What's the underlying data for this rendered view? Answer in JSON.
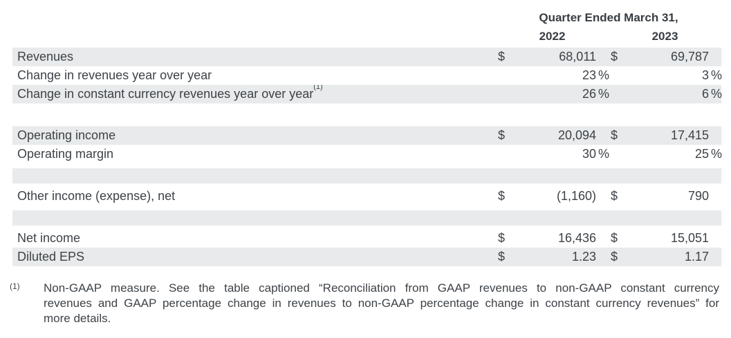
{
  "colors": {
    "row_shade": "#e8eaeb",
    "text": "#3d4247",
    "background": "#ffffff"
  },
  "table": {
    "header": {
      "title": "Quarter Ended March 31,",
      "years": [
        "2022",
        "2023"
      ]
    },
    "rows": [
      {
        "label": "Revenues",
        "sup": "",
        "shaded": true,
        "cells": [
          {
            "cur": "$",
            "val": "68,011",
            "suf": ""
          },
          {
            "cur": "$",
            "val": "69,787",
            "suf": ""
          }
        ]
      },
      {
        "label": "Change in revenues year over year",
        "sup": "",
        "shaded": false,
        "cells": [
          {
            "cur": "",
            "val": "23",
            "suf": "%"
          },
          {
            "cur": "",
            "val": "3",
            "suf": "%"
          }
        ]
      },
      {
        "label": "Change in constant currency revenues year over year",
        "sup": "(1)",
        "shaded": true,
        "cells": [
          {
            "cur": "",
            "val": "26",
            "suf": "%"
          },
          {
            "cur": "",
            "val": "6",
            "suf": "%"
          }
        ]
      },
      {
        "label": "Operating income",
        "sup": "",
        "shaded": true,
        "cells": [
          {
            "cur": "$",
            "val": "20,094",
            "suf": ""
          },
          {
            "cur": "$",
            "val": "17,415",
            "suf": ""
          }
        ]
      },
      {
        "label": "Operating margin",
        "sup": "",
        "shaded": false,
        "cells": [
          {
            "cur": "",
            "val": "30",
            "suf": "%"
          },
          {
            "cur": "",
            "val": "25",
            "suf": "%"
          }
        ]
      },
      {
        "label": "Other income (expense), net",
        "sup": "",
        "shaded": false,
        "cells": [
          {
            "cur": "$",
            "val": "(1,160)",
            "suf": ""
          },
          {
            "cur": "$",
            "val": "790",
            "suf": ""
          }
        ]
      },
      {
        "label": "Net income",
        "sup": "",
        "shaded": false,
        "cells": [
          {
            "cur": "$",
            "val": "16,436",
            "suf": ""
          },
          {
            "cur": "$",
            "val": "15,051",
            "suf": ""
          }
        ]
      },
      {
        "label": "Diluted EPS",
        "sup": "",
        "shaded": true,
        "cells": [
          {
            "cur": "$",
            "val": "1.23",
            "suf": ""
          },
          {
            "cur": "$",
            "val": "1.17",
            "suf": ""
          }
        ]
      }
    ]
  },
  "footnote": {
    "marker": "(1)",
    "lines": [
      "Non-GAAP measure. See the table captioned “Reconciliation from GAAP revenues to non-GAAP constant currency",
      "revenues and GAAP percentage change in revenues to non-GAAP percentage change in constant currency revenues” for",
      "more details."
    ]
  }
}
